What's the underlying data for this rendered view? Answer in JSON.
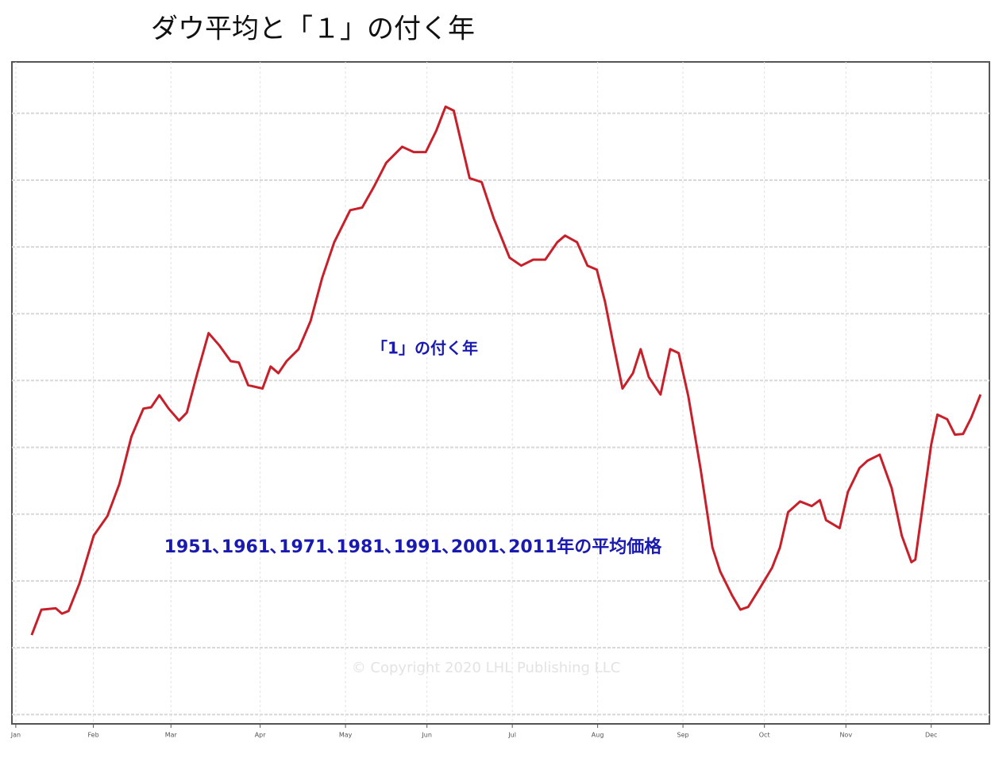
{
  "chart_data": {
    "type": "line",
    "title": "ダウ平均と「１」の付く年",
    "annotations": [
      "「1」の付く年",
      "1951､1961､1971､1981､1991､2001､2011年の平均価格",
      "© Copyright 2020 LHL Publishing LLC"
    ],
    "xlim": [
      0,
      252
    ],
    "ylim": [
      -0.14,
      9.77
    ],
    "xticks": [
      {
        "value": 1,
        "label": "Jan"
      },
      {
        "value": 21,
        "label": "Feb"
      },
      {
        "value": 41,
        "label": "Mar"
      },
      {
        "value": 64,
        "label": "Apr"
      },
      {
        "value": 86,
        "label": "May"
      },
      {
        "value": 107,
        "label": "Jun"
      },
      {
        "value": 129,
        "label": "Jul"
      },
      {
        "value": 151,
        "label": "Aug"
      },
      {
        "value": 173,
        "label": "Sep"
      },
      {
        "value": 194,
        "label": "Oct"
      },
      {
        "value": 215,
        "label": "Nov"
      },
      {
        "value": 237,
        "label": "Dec"
      }
    ],
    "yticks": [
      0,
      1,
      2,
      3,
      4,
      5,
      6,
      7,
      8,
      9
    ],
    "show_ytick_labels": false,
    "grid": true,
    "series": [
      {
        "color": "#c8202a",
        "x": [
          5.1,
          7.6,
          11.3,
          12.9,
          14.6,
          17.4,
          21.1,
          24.6,
          27.7,
          30.8,
          33.9,
          35.9,
          38.0,
          40.4,
          43.1,
          45.1,
          47.8,
          50.7,
          53.4,
          56.4,
          58.5,
          60.9,
          64.6,
          66.7,
          68.7,
          70.8,
          73.9,
          77.0,
          80.0,
          83.1,
          87.2,
          90.3,
          93.4,
          96.5,
          100.6,
          103.6,
          106.7,
          109.4,
          111.8,
          113.9,
          118.0,
          121.1,
          124.2,
          128.3,
          131.3,
          134.4,
          137.5,
          140.6,
          142.6,
          145.7,
          148.4,
          150.8,
          152.9,
          154.9,
          157.4,
          160.1,
          162.1,
          164.2,
          167.2,
          169.7,
          171.9,
          174.4,
          177.5,
          180.6,
          182.6,
          185.7,
          187.8,
          189.8,
          192.9,
          196.0,
          198.0,
          200.1,
          203.2,
          206.2,
          208.3,
          209.9,
          213.4,
          215.5,
          218.5,
          220.6,
          223.7,
          226.8,
          229.4,
          231.9,
          232.9,
          235.0,
          237.0,
          238.6,
          241.1,
          243.1,
          245.2,
          247.3,
          249.7
        ],
        "values": [
          1.19,
          1.57,
          1.59,
          1.51,
          1.55,
          1.96,
          2.68,
          2.97,
          3.45,
          4.16,
          4.58,
          4.6,
          4.78,
          4.58,
          4.4,
          4.52,
          5.11,
          5.71,
          5.53,
          5.29,
          5.27,
          4.93,
          4.88,
          5.21,
          5.11,
          5.29,
          5.47,
          5.89,
          6.54,
          7.07,
          7.55,
          7.59,
          7.91,
          8.26,
          8.5,
          8.42,
          8.42,
          8.74,
          9.1,
          9.04,
          8.03,
          7.97,
          7.43,
          6.84,
          6.72,
          6.81,
          6.81,
          7.07,
          7.17,
          7.07,
          6.72,
          6.66,
          6.18,
          5.59,
          4.88,
          5.11,
          5.47,
          5.05,
          4.79,
          5.47,
          5.41,
          4.76,
          3.69,
          2.5,
          2.14,
          1.78,
          1.57,
          1.61,
          1.9,
          2.2,
          2.5,
          3.03,
          3.19,
          3.12,
          3.21,
          2.91,
          2.79,
          3.33,
          3.69,
          3.8,
          3.89,
          3.39,
          2.68,
          2.28,
          2.32,
          3.21,
          4.04,
          4.49,
          4.42,
          4.19,
          4.2,
          4.44,
          4.79
        ]
      }
    ]
  }
}
